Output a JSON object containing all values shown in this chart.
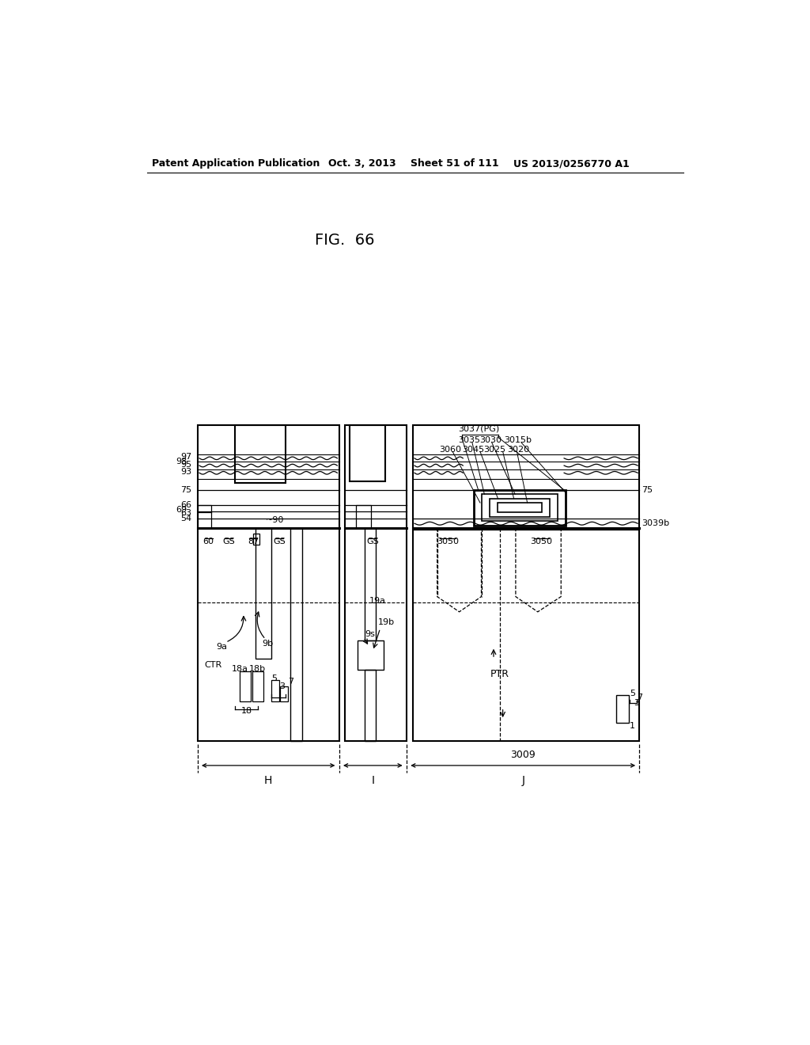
{
  "fig_title": "FIG. 66",
  "header_left": "Patent Application Publication",
  "header_center": "Oct. 3, 2013   Sheet 51 of 111",
  "header_right": "US 2013/0256770 A1",
  "bg_color": "#ffffff",
  "line_color": "#000000"
}
